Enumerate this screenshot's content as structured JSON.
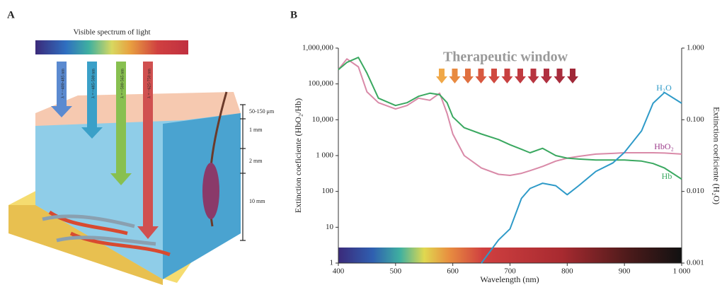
{
  "panel_a": {
    "label": "A",
    "spectrum_title": "Visible spectrum of light",
    "arrow_labels": [
      "λ = ~400-485 nm",
      "λ = ~485-500 nm",
      "λ = ~500-565 nm",
      "λ = ~625-750 nm"
    ],
    "depths": [
      "50-150 μm",
      "1 mm",
      "2 mm",
      "10 mm"
    ]
  },
  "chart_data": {
    "type": "line",
    "panel_label": "B",
    "annotation": "Therapeutic window",
    "xlabel": "Wavelength (nm)",
    "ylabel": "Extinction coeficiente (HbO₂/Hb)",
    "y2label": "Extinction coeficiente (H₂O)",
    "x": [
      400,
      415,
      435,
      450,
      470,
      500,
      520,
      540,
      560,
      577,
      590,
      600,
      620,
      650,
      680,
      700,
      720,
      735,
      757,
      780,
      800,
      820,
      850,
      880,
      900,
      930,
      950,
      970,
      1000
    ],
    "series": [
      {
        "name": "HbO₂",
        "color": "#d98aa8",
        "label_color": "#9b3a8a",
        "values": [
          250000,
          500000,
          300000,
          60000,
          30000,
          20000,
          25000,
          40000,
          35000,
          55000,
          15000,
          4000,
          1000,
          450,
          300,
          280,
          320,
          380,
          500,
          700,
          850,
          950,
          1100,
          1150,
          1200,
          1200,
          1200,
          1180,
          1100
        ]
      },
      {
        "name": "Hb",
        "color": "#3aa860",
        "label_color": "#3aa860",
        "values": [
          250000,
          400000,
          550000,
          200000,
          40000,
          25000,
          30000,
          45000,
          55000,
          50000,
          30000,
          12000,
          6000,
          4000,
          2800,
          2000,
          1500,
          1200,
          1600,
          1000,
          850,
          800,
          750,
          750,
          750,
          700,
          600,
          450,
          220
        ]
      },
      {
        "name": "H₂O",
        "color": "#2e9ac8",
        "label_color": "#2e9ac8",
        "axis": "y2",
        "values": [
          null,
          null,
          null,
          null,
          null,
          null,
          null,
          null,
          null,
          null,
          null,
          null,
          null,
          0.001,
          0.0021,
          0.003,
          0.008,
          0.011,
          0.013,
          0.012,
          0.009,
          0.012,
          0.019,
          0.025,
          0.035,
          0.07,
          0.17,
          0.24,
          0.17
        ]
      }
    ],
    "xlim": [
      400,
      1000
    ],
    "xticks": [
      400,
      500,
      600,
      700,
      800,
      900,
      {
        "value": 1000,
        "label": "1 000"
      }
    ],
    "ylim": [
      1,
      1000000
    ],
    "yscale": "log",
    "yticks": [
      1,
      10,
      100,
      {
        "value": 1000,
        "label": "1 000"
      },
      {
        "value": 10000,
        "label": "10,000"
      },
      {
        "value": 100000,
        "label": "100,000"
      },
      {
        "value": 1000000,
        "label": "1,000,000"
      }
    ],
    "y2lim": [
      0.001,
      1
    ],
    "y2scale": "log",
    "y2ticks": [
      {
        "value": 0.001,
        "label": "0.001"
      },
      {
        "value": 0.01,
        "label": "0.010"
      },
      {
        "value": 0.1,
        "label": "0.100"
      },
      {
        "value": 1,
        "label": "1.000"
      }
    ]
  }
}
